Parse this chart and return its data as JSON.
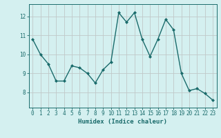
{
  "x": [
    0,
    1,
    2,
    3,
    4,
    5,
    6,
    7,
    8,
    9,
    10,
    11,
    12,
    13,
    14,
    15,
    16,
    17,
    18,
    19,
    20,
    21,
    22,
    23
  ],
  "y": [
    10.8,
    10.0,
    9.5,
    8.6,
    8.6,
    9.4,
    9.3,
    9.0,
    8.5,
    9.2,
    9.6,
    12.2,
    11.7,
    12.2,
    10.8,
    9.9,
    10.8,
    11.85,
    11.3,
    9.0,
    8.1,
    8.2,
    7.95,
    7.6
  ],
  "line_color": "#1a6b6b",
  "marker": "D",
  "marker_size": 2,
  "line_width": 1.0,
  "xlabel": "Humidex (Indice chaleur)",
  "ylabel": "",
  "ylim": [
    7.2,
    12.65
  ],
  "xlim": [
    -0.5,
    23.5
  ],
  "yticks": [
    8,
    9,
    10,
    11,
    12
  ],
  "xticks": [
    0,
    1,
    2,
    3,
    4,
    5,
    6,
    7,
    8,
    9,
    10,
    11,
    12,
    13,
    14,
    15,
    16,
    17,
    18,
    19,
    20,
    21,
    22,
    23
  ],
  "xtick_labels": [
    "0",
    "1",
    "2",
    "3",
    "4",
    "5",
    "6",
    "7",
    "8",
    "9",
    "10",
    "11",
    "12",
    "13",
    "14",
    "15",
    "16",
    "17",
    "18",
    "19",
    "20",
    "21",
    "22",
    "23"
  ],
  "bg_color": "#d4f0f0",
  "grid_color": "#c0c8c8",
  "tick_color": "#1a6b6b",
  "label_color": "#1a6b6b",
  "axis_fontsize": 6.5,
  "tick_fontsize": 5.5
}
